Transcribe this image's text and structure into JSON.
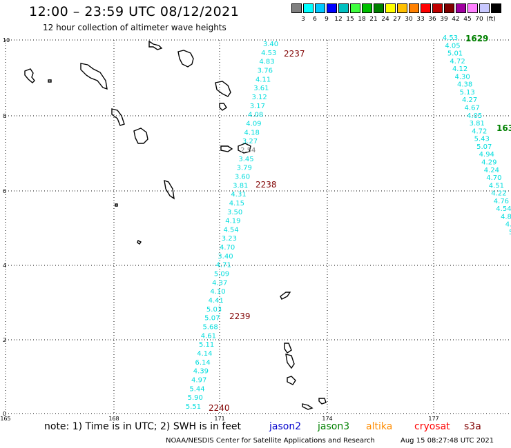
{
  "header": {
    "title": "12:00 – 23:59 UTC 08/12/2021",
    "subtitle": "12 hour collection of altimeter wave heights"
  },
  "legend": {
    "colors": [
      "#808080",
      "#00ffff",
      "#00c8ff",
      "#0000ff",
      "#00c0c0",
      "#40ff40",
      "#00c000",
      "#008000",
      "#ffff00",
      "#ffc000",
      "#ff8000",
      "#ff0000",
      "#c00000",
      "#800000",
      "#a000a0",
      "#ff80ff",
      "#c8c8ff",
      "#000000"
    ],
    "labels": [
      "3",
      "6",
      "9",
      "12",
      "15",
      "18",
      "21",
      "24",
      "27",
      "30",
      "33",
      "36",
      "39",
      "42",
      "45",
      "70",
      "(ft)"
    ]
  },
  "axes": {
    "x_ticks": [
      "165",
      "168",
      "171",
      "174",
      "177"
    ],
    "y_ticks": [
      "0",
      "2",
      "4",
      "6",
      "8",
      "10"
    ]
  },
  "tracks": [
    {
      "id": "2237",
      "color": "#00dddd",
      "label_color": "#800000",
      "values": [
        "3.40",
        "4.53",
        "4.83",
        "3.76",
        "4.11",
        "3.61",
        "3.12",
        "3.17",
        "4.08",
        "4.09",
        "4.18",
        "3.27",
        "2.54",
        "3.45",
        "3.79",
        "3.60",
        "3.81",
        "4.31",
        "4.15",
        "3.50",
        "4.19",
        "4.54",
        "3.23",
        "4.70",
        "3.40",
        "4.71",
        "5.09",
        "4.37",
        "4.10",
        "4.41",
        "5.03",
        "5.07",
        "5.68",
        "4.61",
        "5.11",
        "4.14",
        "6.14",
        "4.39",
        "4.97",
        "5.44",
        "5.90",
        "5.51"
      ]
    },
    {
      "id": "1629",
      "color": "#00dddd",
      "label_color": "#008000",
      "values": [
        "4.53",
        "4.05",
        "5.01",
        "4.72",
        "4.12",
        "4.30",
        "4.38",
        "5.13",
        "4.27",
        "4.67",
        "4.05",
        "3.81",
        "4.72",
        "5.43",
        "5.07",
        "4.94",
        "4.29",
        "4.24",
        "4.70",
        "4.51",
        "4.22",
        "4.76",
        "4.54",
        "4.8",
        "4.",
        "5"
      ]
    }
  ],
  "pass_labels": [
    {
      "text": "2237",
      "color": "#800000"
    },
    {
      "text": "2238",
      "color": "#800000"
    },
    {
      "text": "2239",
      "color": "#800000"
    },
    {
      "text": "2240",
      "color": "#800000"
    },
    {
      "text": "1629",
      "color": "#008000"
    },
    {
      "text": "163",
      "color": "#008000"
    }
  ],
  "note": {
    "text": "note:  1) Time is in UTC;  2) SWH is in feet",
    "missions": [
      {
        "name": "jason2",
        "color": "#0000cc"
      },
      {
        "name": "jason3",
        "color": "#008000"
      },
      {
        "name": "altika",
        "color": "#ff8c00"
      },
      {
        "name": "cryosat",
        "color": "#ff0000"
      },
      {
        "name": "s3a",
        "color": "#800000"
      }
    ]
  },
  "footer": {
    "credit": "NOAA/NESDIS Center for Satellite Applications and Research",
    "timestamp": "Aug 15 08:27:48 UTC 2021"
  }
}
